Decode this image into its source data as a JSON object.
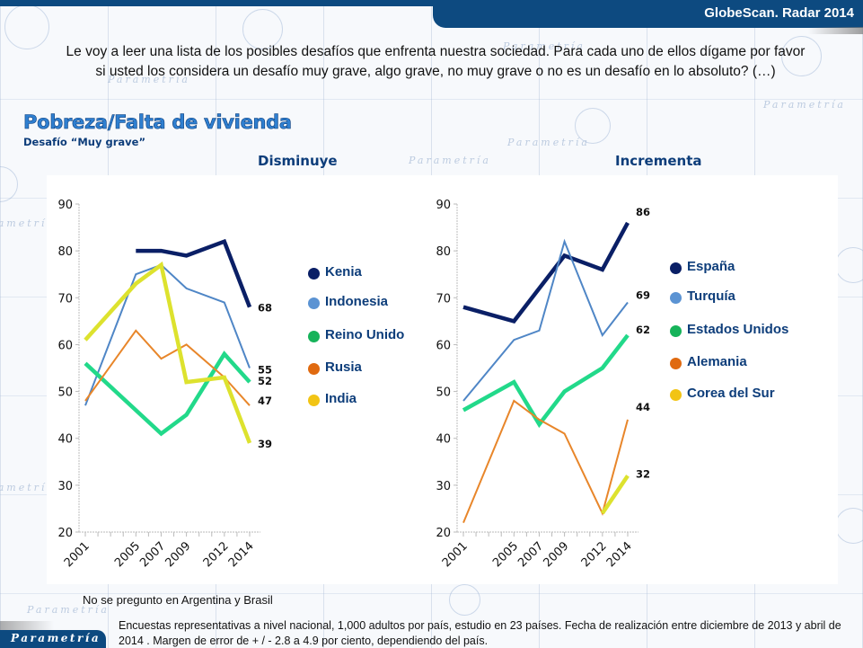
{
  "header": {
    "app_title": "GlobeScan. Radar 2014"
  },
  "question": "Le voy a leer una lista de los posibles desafíos que enfrenta nuestra sociedad. Para cada uno de ellos dígame por favor si usted los considera un desafío muy grave, algo grave, no muy grave o no es un desafío en lo absoluto? (…)",
  "title": "Pobreza/Falta de vivienda",
  "subtitle": "Desafío “Muy grave”",
  "background_watermark": "Parametría",
  "chart_data": [
    {
      "type": "line",
      "title": "Disminuye",
      "xlabel": "",
      "ylabel": "",
      "ylim": [
        20,
        90
      ],
      "yticks": [
        20,
        30,
        40,
        50,
        60,
        70,
        80,
        90
      ],
      "xlim": [
        2001,
        2014
      ],
      "xticks": [
        2001,
        2005,
        2007,
        2009,
        2012,
        2014
      ],
      "grid": false,
      "legend": "right",
      "series": [
        {
          "name": "Kenia",
          "color": "#0a1f66",
          "width": "thick",
          "points": [
            [
              2005,
              80
            ],
            [
              2007,
              80
            ],
            [
              2009,
              79
            ],
            [
              2012,
              82
            ],
            [
              2014,
              68
            ]
          ],
          "end_label": "68"
        },
        {
          "name": "Indonesia",
          "color": "#4f86c6",
          "width": "thin",
          "points": [
            [
              2001,
              47
            ],
            [
              2005,
              75
            ],
            [
              2007,
              77
            ],
            [
              2009,
              72
            ],
            [
              2012,
              69
            ],
            [
              2014,
              55
            ]
          ],
          "end_label": "55"
        },
        {
          "name": "Reino Unido",
          "color": "#22d98a",
          "width": "thick",
          "points": [
            [
              2001,
              56
            ],
            [
              2007,
              41
            ],
            [
              2009,
              45
            ],
            [
              2012,
              58
            ],
            [
              2014,
              52
            ]
          ],
          "end_label": "52"
        },
        {
          "name": "Rusia",
          "color": "#e8862a",
          "width": "thin",
          "points": [
            [
              2001,
              48
            ],
            [
              2005,
              63
            ],
            [
              2007,
              57
            ],
            [
              2009,
              60
            ],
            [
              2012,
              53
            ],
            [
              2014,
              47
            ]
          ],
          "end_label": "47"
        },
        {
          "name": "India",
          "color": "#dde22e",
          "width": "thick",
          "points": [
            [
              2001,
              61
            ],
            [
              2005,
              73
            ],
            [
              2007,
              77
            ],
            [
              2009,
              52
            ],
            [
              2012,
              53
            ],
            [
              2014,
              39
            ]
          ],
          "end_label": "39"
        }
      ],
      "legend_colors": [
        "#0a1f66",
        "#5b93d3",
        "#16b35a",
        "#e06a10",
        "#f2c414"
      ]
    },
    {
      "type": "line",
      "title": "Incrementa",
      "xlabel": "",
      "ylabel": "",
      "ylim": [
        20,
        90
      ],
      "yticks": [
        20,
        30,
        40,
        50,
        60,
        70,
        80,
        90
      ],
      "xlim": [
        2001,
        2014
      ],
      "xticks": [
        2001,
        2005,
        2007,
        2009,
        2012,
        2014
      ],
      "grid": false,
      "legend": "right",
      "series": [
        {
          "name": "España",
          "color": "#0a1f66",
          "width": "thick",
          "points": [
            [
              2001,
              68
            ],
            [
              2005,
              65
            ],
            [
              2009,
              79
            ],
            [
              2012,
              76
            ],
            [
              2014,
              86
            ]
          ],
          "end_label": "86"
        },
        {
          "name": "Turquía",
          "color": "#4f86c6",
          "width": "thin",
          "points": [
            [
              2001,
              48
            ],
            [
              2005,
              61
            ],
            [
              2007,
              63
            ],
            [
              2009,
              82
            ],
            [
              2012,
              62
            ],
            [
              2014,
              69
            ]
          ],
          "end_label": "69"
        },
        {
          "name": "Estados Unidos",
          "color": "#22d98a",
          "width": "thick",
          "points": [
            [
              2001,
              46
            ],
            [
              2005,
              52
            ],
            [
              2007,
              43
            ],
            [
              2009,
              50
            ],
            [
              2012,
              55
            ],
            [
              2014,
              62
            ]
          ],
          "end_label": "62"
        },
        {
          "name": "Alemania",
          "color": "#e8862a",
          "width": "thin",
          "points": [
            [
              2001,
              22
            ],
            [
              2005,
              48
            ],
            [
              2007,
              44
            ],
            [
              2009,
              41
            ],
            [
              2012,
              24
            ],
            [
              2014,
              44
            ]
          ],
          "end_label": "44"
        },
        {
          "name": "Corea del Sur",
          "color": "#dde22e",
          "width": "thick",
          "points": [
            [
              2012,
              24
            ],
            [
              2014,
              32
            ]
          ],
          "end_label": "32"
        }
      ],
      "legend_colors": [
        "#0a1f66",
        "#5b93d3",
        "#16b35a",
        "#e06a10",
        "#f2c414"
      ]
    }
  ],
  "note": "No se pregunto en Argentina y Brasil",
  "footer": "Encuestas representativas a nivel nacional, 1,000 adultos por país, estudio en 23 países. Fecha de realización entre diciembre de 2013 y abril de 2014 . Margen de error  de + / - 2.8 a 4.9 por ciento, dependiendo del país.",
  "brand": "Parametría"
}
